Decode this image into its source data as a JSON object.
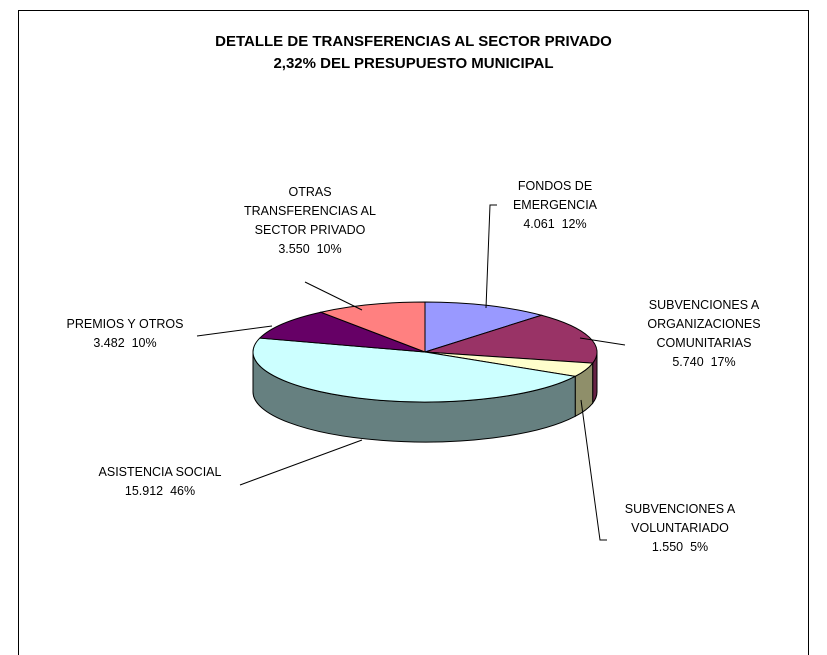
{
  "chart_data": {
    "type": "pie",
    "title": "DETALLE DE TRANSFERENCIAS AL SECTOR PRIVADO",
    "subtitle": "2,32% DEL PRESUPUESTO MUNICIPAL",
    "categories": [
      "FONDOS DE EMERGENCIA",
      "SUBVENCIONES A ORGANIZACIONES COMUNITARIAS",
      "SUBVENCIONES A VOLUNTARIADO",
      "ASISTENCIA SOCIAL",
      "PREMIOS Y OTROS",
      "OTRAS TRANSFERENCIAS AL SECTOR PRIVADO"
    ],
    "values": [
      4061,
      5740,
      1550,
      15912,
      3482,
      3550
    ],
    "value_labels": [
      "4.061",
      "5.740",
      "1.550",
      "15.912",
      "3.482",
      "3.550"
    ],
    "percentages": [
      12,
      17,
      5,
      46,
      10,
      10
    ],
    "percentage_labels": [
      "12%",
      "17%",
      "5%",
      "46%",
      "10%",
      "10%"
    ],
    "colors": [
      "#9999ff",
      "#993366",
      "#ffffcc",
      "#ccffff",
      "#660066",
      "#ff8080"
    ],
    "side_colors": [
      "#6666aa",
      "#662244",
      "#8f8f6a",
      "#668080",
      "#330033",
      "#aa5555"
    ]
  }
}
